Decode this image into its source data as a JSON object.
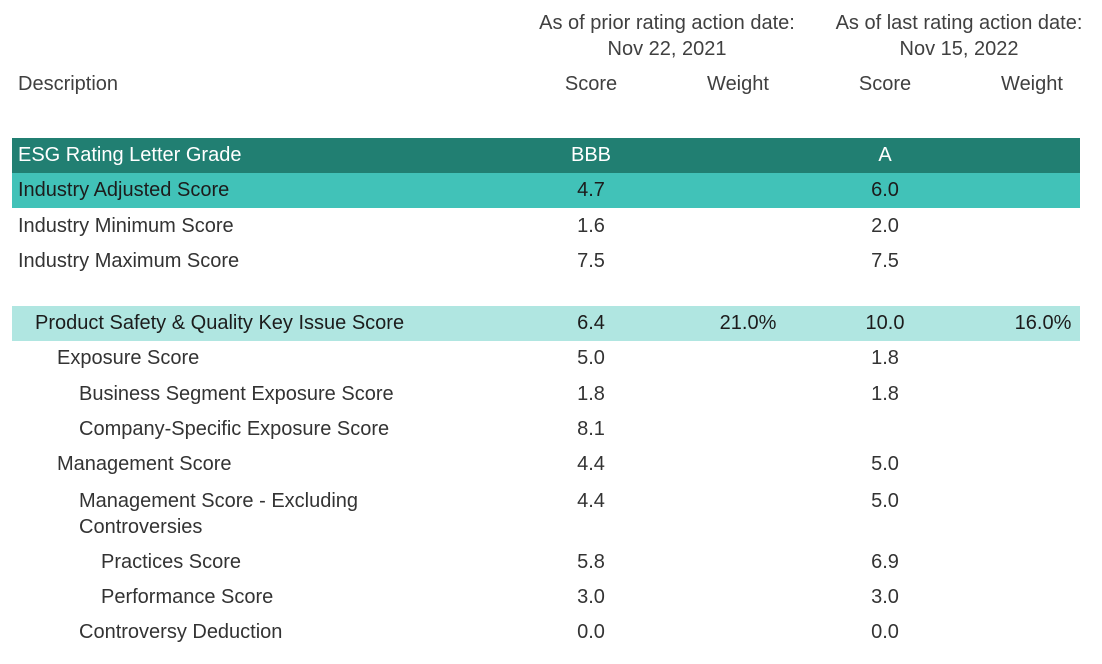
{
  "header": {
    "prior_label": "As of prior rating action date:",
    "prior_date": "Nov 22, 2021",
    "last_label": "As of last rating action date:",
    "last_date": "Nov 15, 2022",
    "description": "Description",
    "score": "Score",
    "weight": "Weight"
  },
  "rows": [
    {
      "desc": "ESG Rating Letter Grade",
      "prior_score": "BBB",
      "prior_weight": "",
      "last_score": "A",
      "last_weight": ""
    },
    {
      "desc": "Industry Adjusted Score",
      "prior_score": "4.7",
      "prior_weight": "",
      "last_score": "6.0",
      "last_weight": ""
    },
    {
      "desc": "Industry Minimum Score",
      "prior_score": "1.6",
      "prior_weight": "",
      "last_score": "2.0",
      "last_weight": ""
    },
    {
      "desc": "Industry Maximum Score",
      "prior_score": "7.5",
      "prior_weight": "",
      "last_score": "7.5",
      "last_weight": ""
    },
    {
      "desc": "Product Safety & Quality Key Issue Score",
      "prior_score": "6.4",
      "prior_weight": "21.0%",
      "last_score": "10.0",
      "last_weight": "16.0%"
    },
    {
      "desc": "Exposure Score",
      "prior_score": "5.0",
      "prior_weight": "",
      "last_score": "1.8",
      "last_weight": ""
    },
    {
      "desc": "Business Segment Exposure Score",
      "prior_score": "1.8",
      "prior_weight": "",
      "last_score": "1.8",
      "last_weight": ""
    },
    {
      "desc": "Company-Specific Exposure Score",
      "prior_score": "8.1",
      "prior_weight": "",
      "last_score": "",
      "last_weight": ""
    },
    {
      "desc": "Management Score",
      "prior_score": "4.4",
      "prior_weight": "",
      "last_score": "5.0",
      "last_weight": ""
    },
    {
      "desc": "Management Score - Excluding Controversies",
      "prior_score": "4.4",
      "prior_weight": "",
      "last_score": "5.0",
      "last_weight": ""
    },
    {
      "desc": "Practices Score",
      "prior_score": "5.8",
      "prior_weight": "",
      "last_score": "6.9",
      "last_weight": ""
    },
    {
      "desc": "Performance Score",
      "prior_score": "3.0",
      "prior_weight": "",
      "last_score": "3.0",
      "last_weight": ""
    },
    {
      "desc": "Controversy Deduction",
      "prior_score": "0.0",
      "prior_weight": "",
      "last_score": "0.0",
      "last_weight": ""
    }
  ],
  "colors": {
    "band_dark": "#217f72",
    "band_mid": "#41c2b8",
    "band_light": "#b0e6e1"
  }
}
